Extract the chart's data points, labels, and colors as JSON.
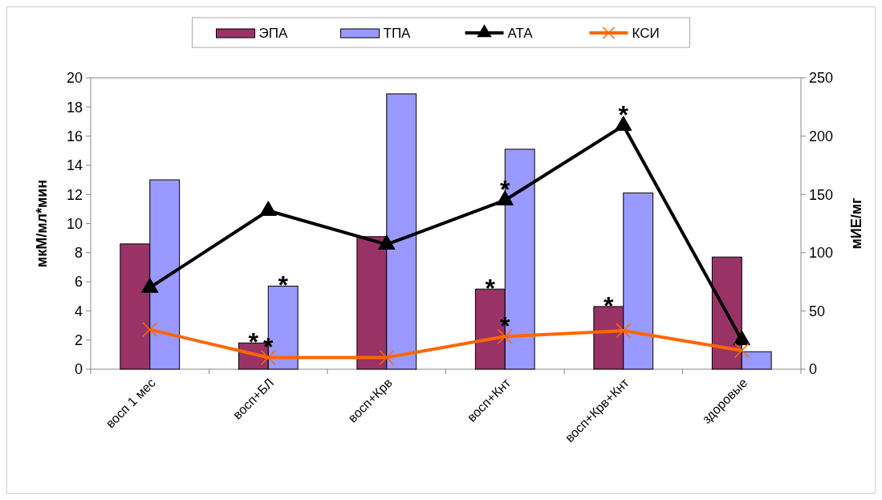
{
  "chart_data": {
    "type": "bar",
    "ylabel": "мкМ/мл*мин",
    "y2label": "мИЕ/мг",
    "categories": [
      "восп 1 мес",
      "восп+БЛ",
      "восп+Крв",
      "восп+Кнт",
      "восп+Крв+Кнт",
      "здоровые"
    ],
    "series": [
      {
        "name": "ЭПА",
        "color": "#993366",
        "values": [
          8.6,
          1.8,
          9.1,
          5.5,
          4.3,
          7.7
        ]
      },
      {
        "name": "ТПА",
        "color": "#9999ff",
        "values": [
          13,
          5.7,
          18.9,
          15.1,
          12.1,
          1.2
        ]
      },
      {
        "name": "АТА",
        "type": "line",
        "axis": "y2",
        "color": "#000000",
        "marker": "triangle",
        "values": [
          70,
          136,
          107,
          145,
          209,
          25
        ]
      },
      {
        "name": "КСИ",
        "type": "line",
        "axis": "y2",
        "color": "#ff6600",
        "marker": "cross",
        "values": [
          34,
          10,
          10,
          28,
          33,
          16
        ]
      }
    ],
    "ylim": [
      0,
      20
    ],
    "yticks": [
      0,
      2,
      4,
      6,
      8,
      10,
      12,
      14,
      16,
      18,
      20
    ],
    "y2lim": [
      0,
      250
    ],
    "y2ticks": [
      0,
      50,
      100,
      150,
      200,
      250
    ],
    "grid": false,
    "legend": "top",
    "annotations": [
      {
        "text": "*",
        "x": "восп+БЛ",
        "y": 1.8
      },
      {
        "text": "*",
        "x": "восп+БЛ",
        "y": 5.7
      },
      {
        "text": "*",
        "x": "восп+БЛ",
        "y": 0.8
      },
      {
        "text": "*",
        "x": "восп+Кнт",
        "y": 5.5
      },
      {
        "text": "*",
        "x": "восп+Кнт",
        "y": 2.24
      },
      {
        "text": "*",
        "x": "восп+Кнт",
        "y": 11.6
      },
      {
        "text": "*",
        "x": "восп+Крв+Кнт",
        "y": 4.3
      },
      {
        "text": "*",
        "x": "восп+Крв+Кнт",
        "y": 16.72
      }
    ]
  }
}
